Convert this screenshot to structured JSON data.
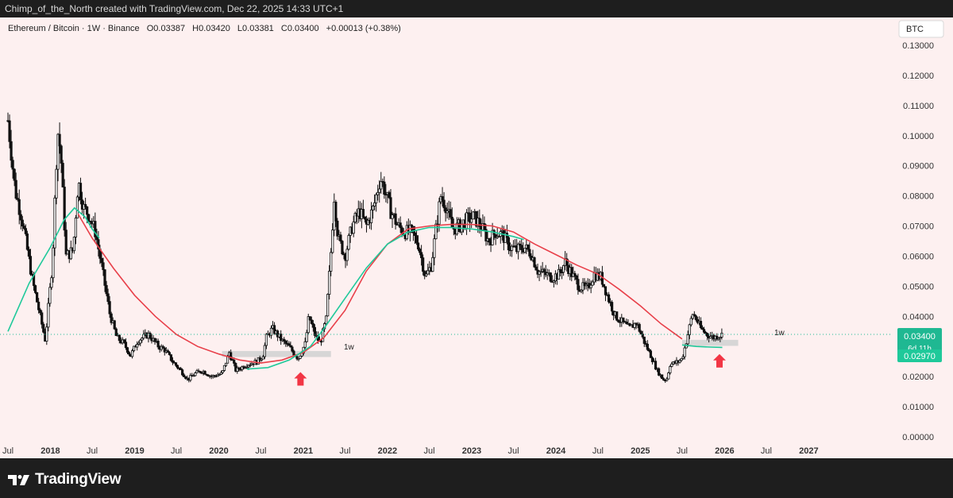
{
  "attribution": "Chimp_of_the_North created with TradingView.com, Dec 22, 2025 14:33 UTC+1",
  "legend": {
    "symbol_text": "Ethereum / Bitcoin · 1W · Binance",
    "open": "O0.03387",
    "high": "H0.03420",
    "low": "L0.03381",
    "close": "C0.03400",
    "change": "+0.00013 (+0.38%)"
  },
  "currency_button": "BTC",
  "price_labels": {
    "last": "0.03400",
    "countdown": "6d 11h",
    "ma": "0.02970"
  },
  "zone_labels": [
    "1w",
    "1w"
  ],
  "brand": "TradingView",
  "colors": {
    "background": "#fdf0f0",
    "candle": "#111111",
    "red_ma": "#e8404a",
    "green_ma": "#1fc99a",
    "zone": "#d3d3d3",
    "arrow": "#f23645",
    "last_label": "#1fb892"
  },
  "chart_data": {
    "type": "candlestick",
    "title": "Ethereum / Bitcoin · 1W · Binance",
    "y_axis": {
      "range": [
        0.0,
        0.13
      ],
      "ticks": [
        "0.00000",
        "0.01000",
        "0.02000",
        "0.03000",
        "0.04000",
        "0.05000",
        "0.06000",
        "0.07000",
        "0.08000",
        "0.09000",
        "0.10000",
        "0.11000",
        "0.12000",
        "0.13000"
      ]
    },
    "x_axis": {
      "range": [
        "2017-07-01",
        "2027-07-01"
      ],
      "ticks": [
        {
          "label": "Jul",
          "date": "2017-07-01"
        },
        {
          "label": "2018",
          "date": "2018-01-01"
        },
        {
          "label": "Jul",
          "date": "2018-07-01"
        },
        {
          "label": "2019",
          "date": "2019-01-01"
        },
        {
          "label": "Jul",
          "date": "2019-07-01"
        },
        {
          "label": "2020",
          "date": "2020-01-01"
        },
        {
          "label": "Jul",
          "date": "2020-07-01"
        },
        {
          "label": "2021",
          "date": "2021-01-01"
        },
        {
          "label": "Jul",
          "date": "2021-07-01"
        },
        {
          "label": "2022",
          "date": "2022-01-01"
        },
        {
          "label": "Jul",
          "date": "2022-07-01"
        },
        {
          "label": "2023",
          "date": "2023-01-01"
        },
        {
          "label": "Jul",
          "date": "2023-07-01"
        },
        {
          "label": "2024",
          "date": "2024-01-01"
        },
        {
          "label": "Jul",
          "date": "2024-07-01"
        },
        {
          "label": "2025",
          "date": "2025-01-01"
        },
        {
          "label": "Jul",
          "date": "2025-07-01"
        },
        {
          "label": "2026",
          "date": "2026-01-01"
        },
        {
          "label": "Jul",
          "date": "2026-07-01"
        },
        {
          "label": "2027",
          "date": "2027-01-01"
        }
      ]
    },
    "price_path": [
      [
        "2017-07-01",
        0.105
      ],
      [
        "2017-08-01",
        0.082
      ],
      [
        "2017-09-01",
        0.072
      ],
      [
        "2017-10-15",
        0.052
      ],
      [
        "2017-11-15",
        0.041
      ],
      [
        "2017-12-10",
        0.032
      ],
      [
        "2018-01-10",
        0.058
      ],
      [
        "2018-02-01",
        0.102
      ],
      [
        "2018-02-15",
        0.094
      ],
      [
        "2018-03-10",
        0.06
      ],
      [
        "2018-04-10",
        0.062
      ],
      [
        "2018-05-01",
        0.085
      ],
      [
        "2018-05-25",
        0.076
      ],
      [
        "2018-06-15",
        0.074
      ],
      [
        "2018-07-15",
        0.068
      ],
      [
        "2018-08-15",
        0.055
      ],
      [
        "2018-09-15",
        0.041
      ],
      [
        "2018-10-15",
        0.033
      ],
      [
        "2018-11-15",
        0.031
      ],
      [
        "2018-12-15",
        0.027
      ],
      [
        "2019-01-15",
        0.032
      ],
      [
        "2019-03-01",
        0.034
      ],
      [
        "2019-04-15",
        0.03
      ],
      [
        "2019-05-10",
        0.029
      ],
      [
        "2019-06-15",
        0.025
      ],
      [
        "2019-07-20",
        0.022
      ],
      [
        "2019-08-20",
        0.019
      ],
      [
        "2019-09-20",
        0.021
      ],
      [
        "2019-10-20",
        0.022
      ],
      [
        "2019-12-01",
        0.02
      ],
      [
        "2020-01-15",
        0.021
      ],
      [
        "2020-02-15",
        0.028
      ],
      [
        "2020-03-15",
        0.022
      ],
      [
        "2020-05-01",
        0.024
      ],
      [
        "2020-06-15",
        0.025
      ],
      [
        "2020-07-10",
        0.027
      ],
      [
        "2020-07-25",
        0.033
      ],
      [
        "2020-08-20",
        0.036
      ],
      [
        "2020-09-30",
        0.032
      ],
      [
        "2020-10-30",
        0.03
      ],
      [
        "2020-12-10",
        0.026
      ],
      [
        "2021-01-10",
        0.031
      ],
      [
        "2021-01-25",
        0.04
      ],
      [
        "2021-02-20",
        0.034
      ],
      [
        "2021-03-15",
        0.031
      ],
      [
        "2021-04-10",
        0.039
      ],
      [
        "2021-04-30",
        0.06
      ],
      [
        "2021-05-15",
        0.08
      ],
      [
        "2021-06-01",
        0.066
      ],
      [
        "2021-07-01",
        0.06
      ],
      [
        "2021-08-01",
        0.07
      ],
      [
        "2021-09-01",
        0.075
      ],
      [
        "2021-10-01",
        0.07
      ],
      [
        "2021-11-01",
        0.076
      ],
      [
        "2021-12-01",
        0.086
      ],
      [
        "2021-12-20",
        0.082
      ],
      [
        "2022-01-15",
        0.075
      ],
      [
        "2022-02-15",
        0.07
      ],
      [
        "2022-03-15",
        0.068
      ],
      [
        "2022-04-15",
        0.068
      ],
      [
        "2022-05-15",
        0.064
      ],
      [
        "2022-06-15",
        0.053
      ],
      [
        "2022-07-10",
        0.057
      ],
      [
        "2022-08-01",
        0.07
      ],
      [
        "2022-08-20",
        0.08
      ],
      [
        "2022-09-10",
        0.077
      ],
      [
        "2022-10-10",
        0.069
      ],
      [
        "2022-11-10",
        0.07
      ],
      [
        "2022-12-10",
        0.072
      ],
      [
        "2023-01-10",
        0.073
      ],
      [
        "2023-02-10",
        0.07
      ],
      [
        "2023-03-15",
        0.065
      ],
      [
        "2023-04-15",
        0.068
      ],
      [
        "2023-05-15",
        0.067
      ],
      [
        "2023-06-15",
        0.063
      ],
      [
        "2023-07-15",
        0.062
      ],
      [
        "2023-08-15",
        0.063
      ],
      [
        "2023-09-15",
        0.061
      ],
      [
        "2023-10-15",
        0.055
      ],
      [
        "2023-11-15",
        0.054
      ],
      [
        "2023-12-15",
        0.053
      ],
      [
        "2024-01-15",
        0.054
      ],
      [
        "2024-02-10",
        0.058
      ],
      [
        "2024-03-10",
        0.054
      ],
      [
        "2024-04-10",
        0.05
      ],
      [
        "2024-05-15",
        0.049
      ],
      [
        "2024-06-15",
        0.054
      ],
      [
        "2024-07-15",
        0.053
      ],
      [
        "2024-08-15",
        0.046
      ],
      [
        "2024-09-15",
        0.04
      ],
      [
        "2024-10-15",
        0.038
      ],
      [
        "2024-11-15",
        0.036
      ],
      [
        "2024-12-15",
        0.038
      ],
      [
        "2025-01-15",
        0.032
      ],
      [
        "2025-02-15",
        0.027
      ],
      [
        "2025-03-15",
        0.022
      ],
      [
        "2025-04-10",
        0.019
      ],
      [
        "2025-04-25",
        0.019
      ],
      [
        "2025-05-10",
        0.024
      ],
      [
        "2025-06-15",
        0.025
      ],
      [
        "2025-07-01",
        0.026
      ],
      [
        "2025-07-20",
        0.032
      ],
      [
        "2025-08-15",
        0.041
      ],
      [
        "2025-09-01",
        0.039
      ],
      [
        "2025-09-20",
        0.036
      ],
      [
        "2025-10-15",
        0.034
      ],
      [
        "2025-11-15",
        0.033
      ],
      [
        "2025-12-22",
        0.034
      ]
    ],
    "series": [
      {
        "type": "moving_average",
        "color": "#e8404a",
        "points": [
          [
            "2018-05-01",
            0.074
          ],
          [
            "2018-07-01",
            0.066
          ],
          [
            "2018-10-01",
            0.056
          ],
          [
            "2019-01-01",
            0.047
          ],
          [
            "2019-04-01",
            0.04
          ],
          [
            "2019-07-01",
            0.034
          ],
          [
            "2019-10-01",
            0.03
          ],
          [
            "2020-01-01",
            0.0275
          ],
          [
            "2020-04-01",
            0.0255
          ],
          [
            "2020-07-01",
            0.0245
          ],
          [
            "2020-10-01",
            0.0255
          ],
          [
            "2021-01-01",
            0.028
          ],
          [
            "2021-04-01",
            0.033
          ],
          [
            "2021-07-01",
            0.042
          ],
          [
            "2021-10-01",
            0.055
          ],
          [
            "2022-01-01",
            0.064
          ],
          [
            "2022-04-01",
            0.069
          ],
          [
            "2022-07-01",
            0.07
          ],
          [
            "2022-10-01",
            0.0705
          ],
          [
            "2023-01-01",
            0.0705
          ],
          [
            "2023-04-01",
            0.07
          ],
          [
            "2023-07-01",
            0.068
          ],
          [
            "2023-10-01",
            0.064
          ],
          [
            "2024-01-01",
            0.0605
          ],
          [
            "2024-04-01",
            0.057
          ],
          [
            "2024-07-01",
            0.054
          ],
          [
            "2024-10-01",
            0.049
          ],
          [
            "2025-01-01",
            0.0435
          ],
          [
            "2025-04-01",
            0.0375
          ],
          [
            "2025-07-01",
            0.0325
          ]
        ]
      },
      {
        "type": "moving_average",
        "color": "#1fc99a",
        "points": [
          [
            "2017-07-01",
            0.035
          ],
          [
            "2017-10-01",
            0.051
          ],
          [
            "2018-01-01",
            0.063
          ],
          [
            "2018-03-01",
            0.072
          ],
          [
            "2018-04-15",
            0.076
          ],
          [
            "2018-06-01",
            0.073
          ],
          [
            "2018-07-01",
            0.069
          ],
          [
            "2018-08-01",
            0.066
          ]
        ]
      },
      {
        "type": "moving_average",
        "color": "#1fc99a",
        "points": [
          [
            "2020-05-01",
            0.0225
          ],
          [
            "2020-08-01",
            0.023
          ],
          [
            "2020-11-01",
            0.0255
          ],
          [
            "2021-02-01",
            0.03
          ],
          [
            "2021-04-01",
            0.036
          ],
          [
            "2021-07-01",
            0.046
          ],
          [
            "2021-10-01",
            0.056
          ],
          [
            "2022-01-01",
            0.064
          ],
          [
            "2022-04-01",
            0.068
          ],
          [
            "2022-07-01",
            0.0695
          ],
          [
            "2022-10-01",
            0.0695
          ],
          [
            "2023-01-01",
            0.069
          ],
          [
            "2023-04-01",
            0.068
          ],
          [
            "2023-07-01",
            0.0665
          ],
          [
            "2023-08-15",
            0.0655
          ]
        ]
      },
      {
        "type": "moving_average",
        "color": "#1fc99a",
        "points": [
          [
            "2025-07-01",
            0.0305
          ],
          [
            "2025-09-01",
            0.03
          ],
          [
            "2025-11-01",
            0.0298
          ],
          [
            "2025-12-22",
            0.0297
          ]
        ]
      }
    ],
    "zones": [
      {
        "label": "1w",
        "from": "2020-01-15",
        "to": "2021-05-01",
        "low": 0.0265,
        "high": 0.0285
      },
      {
        "label": "1w",
        "from": "2025-07-01",
        "to": "2026-03-01",
        "low": 0.0302,
        "high": 0.0322
      }
    ],
    "arrows": [
      {
        "date": "2020-12-20",
        "value": 0.0215
      },
      {
        "date": "2025-12-10",
        "value": 0.0275
      }
    ],
    "last_price": 0.034,
    "ma_value": 0.0297,
    "legend_placement": "top-left",
    "grid": false
  }
}
